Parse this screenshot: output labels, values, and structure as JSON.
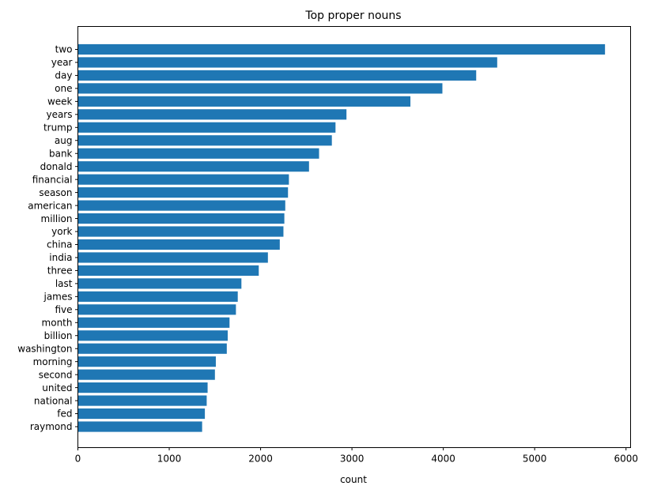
{
  "chart_data": {
    "type": "bar",
    "orientation": "horizontal",
    "title": "Top proper nouns",
    "xlabel": "count",
    "ylabel": "",
    "xlim": [
      0,
      6050
    ],
    "xticks": [
      0,
      1000,
      2000,
      3000,
      4000,
      5000,
      6000
    ],
    "grid": false,
    "bar_color": "#1f77b4",
    "categories": [
      "two",
      "year",
      "day",
      "one",
      "week",
      "years",
      "trump",
      "aug",
      "bank",
      "donald",
      "financial",
      "season",
      "american",
      "million",
      "york",
      "china",
      "india",
      "three",
      "last",
      "james",
      "five",
      "month",
      "billion",
      "washington",
      "morning",
      "second",
      "united",
      "national",
      "fed",
      "raymond"
    ],
    "values": [
      5770,
      4590,
      4360,
      3990,
      3640,
      2940,
      2820,
      2780,
      2640,
      2530,
      2310,
      2300,
      2270,
      2260,
      2250,
      2210,
      2080,
      1980,
      1790,
      1750,
      1730,
      1660,
      1640,
      1630,
      1510,
      1500,
      1420,
      1410,
      1390,
      1360
    ]
  }
}
